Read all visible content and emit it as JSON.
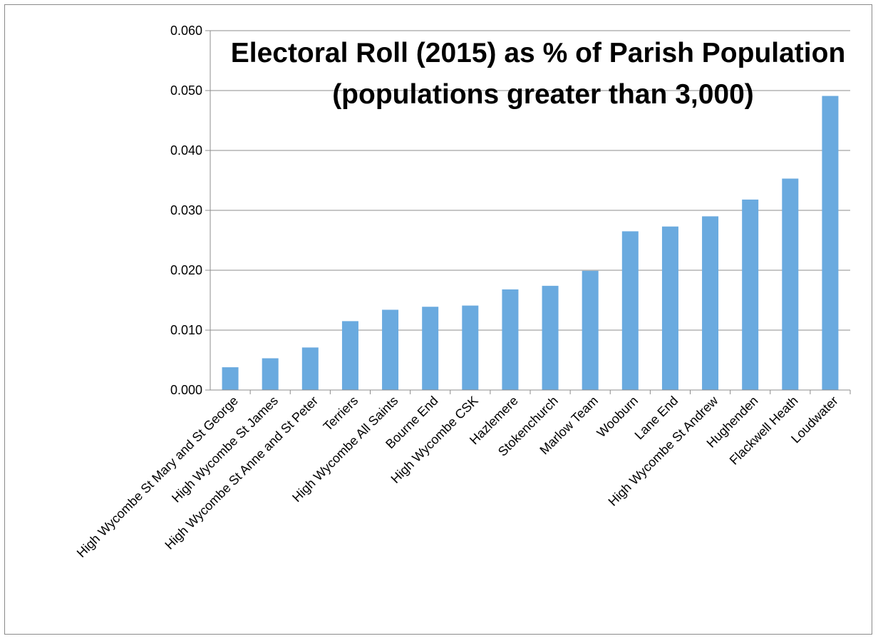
{
  "chart_data": {
    "type": "bar",
    "title": [
      "Electoral Roll (2015) as % of Parish Population",
      "(populations greater than 3,000)"
    ],
    "xlabel": "",
    "ylabel": "",
    "ylim": [
      0,
      0.06
    ],
    "ytick_labels": [
      "0.000",
      "0.010",
      "0.020",
      "0.030",
      "0.040",
      "0.050",
      "0.060"
    ],
    "grid": true,
    "legend": "none",
    "bar_color": "#6aaadf",
    "categories": [
      "High Wycombe St Mary and St George",
      "High Wycombe St James",
      "High Wycombe St Anne and St Peter",
      "Terriers",
      "High Wycombe All Saints",
      "Bourne End",
      "High Wycombe CSK",
      "Hazlemere",
      "Stokenchurch",
      "Marlow Team",
      "Wooburn",
      "Lane End",
      "High Wycombe St Andrew",
      "Hughenden",
      "Flackwell Heath",
      "Loudwater"
    ],
    "values": [
      0.0038,
      0.0053,
      0.0071,
      0.0115,
      0.0134,
      0.0139,
      0.0141,
      0.0168,
      0.0174,
      0.0199,
      0.0265,
      0.0273,
      0.029,
      0.0318,
      0.0353,
      0.0491
    ]
  }
}
